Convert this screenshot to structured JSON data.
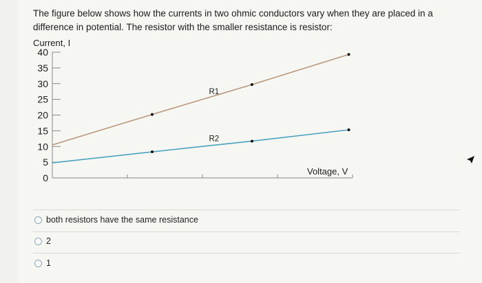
{
  "question": {
    "text": "The figure below shows how the currents in two ohmic conductors vary when they are placed in a difference in potential. The resistor with the smaller resistance is resistor:"
  },
  "chart_data": {
    "type": "line",
    "ylabel": "Current, I",
    "xlabel": "Voltage, V",
    "ylim": [
      0,
      40
    ],
    "yticks": [
      0,
      5,
      10,
      15,
      20,
      25,
      30,
      35,
      40
    ],
    "xlim": [
      0,
      4
    ],
    "xticks": [
      1,
      2,
      3,
      4
    ],
    "grid": false,
    "series": [
      {
        "name": "R1",
        "color": "#b8977a",
        "x": [
          0,
          1.33,
          2.66,
          3.95
        ],
        "y": [
          10.5,
          20.2,
          29.7,
          39.3
        ]
      },
      {
        "name": "R2",
        "color": "#4aa2bf",
        "x": [
          0,
          1.33,
          2.66,
          3.95
        ],
        "y": [
          4.8,
          8.3,
          11.7,
          15.3
        ]
      }
    ]
  },
  "options": [
    {
      "label": "both resistors have the same resistance"
    },
    {
      "label": "2"
    },
    {
      "label": "1"
    }
  ]
}
